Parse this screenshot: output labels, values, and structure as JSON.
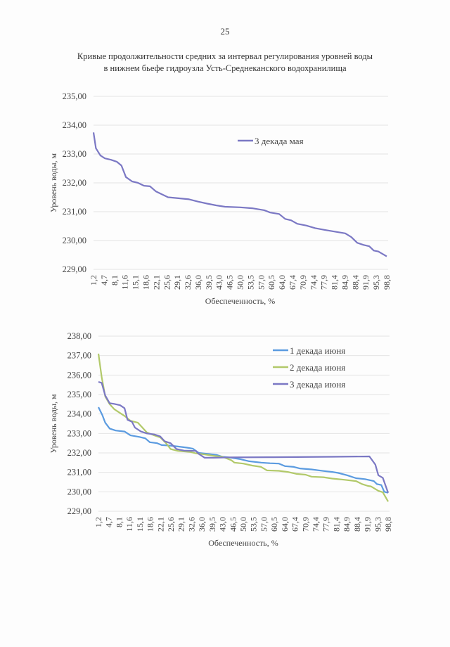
{
  "page_number": "25",
  "title_line1": "Кривые продолжительности средних за интервал регулирования уровней воды",
  "title_line2": "в нижнем бьефе гидроузла Усть-Среднеканского водохранилища",
  "chart_data": [
    {
      "type": "line",
      "title": "",
      "xlabel": "Обеспеченность, %",
      "ylabel": "Уровень воды, м",
      "xlim": [
        1.2,
        98.8
      ],
      "ylim": [
        229,
        235
      ],
      "yticks": [
        "229,00",
        "230,00",
        "231,00",
        "232,00",
        "233,00",
        "234,00",
        "235,00"
      ],
      "xticks": [
        "1,2",
        "4,7",
        "8,1",
        "11,6",
        "15,1",
        "18,6",
        "22,1",
        "25,6",
        "29,1",
        "32,6",
        "36,0",
        "39,5",
        "43,0",
        "46,5",
        "50,0",
        "53,5",
        "57,0",
        "60,5",
        "64,0",
        "67,4",
        "70,9",
        "74,4",
        "77,9",
        "81,4",
        "84,9",
        "88,4",
        "91,9",
        "95,3",
        "98,8"
      ],
      "grid": true,
      "legend_position": "top-right",
      "series": [
        {
          "name": "3 декада мая",
          "color": "#7b78c4",
          "points": [
            [
              1.2,
              233.75
            ],
            [
              2,
              233.2
            ],
            [
              3.5,
              232.95
            ],
            [
              5,
              232.85
            ],
            [
              7,
              232.8
            ],
            [
              9,
              232.73
            ],
            [
              10.5,
              232.6
            ],
            [
              12,
              232.2
            ],
            [
              14,
              232.05
            ],
            [
              16,
              232.0
            ],
            [
              18,
              231.9
            ],
            [
              20,
              231.88
            ],
            [
              22,
              231.7
            ],
            [
              24,
              231.6
            ],
            [
              26,
              231.5
            ],
            [
              30,
              231.46
            ],
            [
              33,
              231.43
            ],
            [
              36,
              231.35
            ],
            [
              39,
              231.28
            ],
            [
              42,
              231.22
            ],
            [
              45,
              231.17
            ],
            [
              50,
              231.15
            ],
            [
              54,
              231.12
            ],
            [
              58,
              231.05
            ],
            [
              60,
              230.97
            ],
            [
              63,
              230.92
            ],
            [
              65,
              230.75
            ],
            [
              67,
              230.7
            ],
            [
              69,
              230.58
            ],
            [
              72,
              230.52
            ],
            [
              75,
              230.43
            ],
            [
              78,
              230.37
            ],
            [
              82,
              230.3
            ],
            [
              85,
              230.25
            ],
            [
              87,
              230.12
            ],
            [
              89,
              229.92
            ],
            [
              91,
              229.85
            ],
            [
              93,
              229.8
            ],
            [
              94.5,
              229.65
            ],
            [
              96,
              229.62
            ],
            [
              98.8,
              229.45
            ]
          ]
        }
      ]
    },
    {
      "type": "line",
      "title": "",
      "xlabel": "Обеспеченность, %",
      "ylabel": "Уровень воды, м",
      "xlim": [
        1.2,
        98.8
      ],
      "ylim": [
        229,
        238
      ],
      "yticks": [
        "229,00",
        "230,00",
        "231,00",
        "232,00",
        "233,00",
        "234,00",
        "235,00",
        "236,00",
        "237,00",
        "238,00"
      ],
      "xticks": [
        "1,2",
        "4,7",
        "8,1",
        "11,6",
        "15,1",
        "18,6",
        "22,1",
        "25,6",
        "29,1",
        "32,6",
        "36,0",
        "39,5",
        "43,0",
        "46,5",
        "50,0",
        "53,5",
        "57,0",
        "60,5",
        "64,0",
        "67,4",
        "70,9",
        "74,4",
        "77,9",
        "81,4",
        "84,9",
        "88,4",
        "91,9",
        "95,3",
        "98,8"
      ],
      "grid": true,
      "legend_position": "top-right",
      "series": [
        {
          "name": "1 декада июня",
          "color": "#5b9be0",
          "points": [
            [
              1.2,
              234.35
            ],
            [
              2.5,
              233.95
            ],
            [
              3.5,
              233.55
            ],
            [
              5,
              233.25
            ],
            [
              7,
              233.15
            ],
            [
              10,
              233.1
            ],
            [
              12,
              232.9
            ],
            [
              15,
              232.82
            ],
            [
              17,
              232.75
            ],
            [
              18.5,
              232.55
            ],
            [
              21,
              232.5
            ],
            [
              22.5,
              232.4
            ],
            [
              25,
              232.38
            ],
            [
              28,
              232.33
            ],
            [
              31,
              232.27
            ],
            [
              33,
              232.22
            ],
            [
              35,
              232.0
            ],
            [
              38,
              231.95
            ],
            [
              41,
              231.9
            ],
            [
              43,
              231.8
            ],
            [
              46,
              231.75
            ],
            [
              49,
              231.68
            ],
            [
              52,
              231.57
            ],
            [
              56,
              231.5
            ],
            [
              59,
              231.47
            ],
            [
              62,
              231.45
            ],
            [
              64,
              231.32
            ],
            [
              67,
              231.28
            ],
            [
              69,
              231.2
            ],
            [
              73,
              231.15
            ],
            [
              77,
              231.07
            ],
            [
              80,
              231.02
            ],
            [
              82,
              230.97
            ],
            [
              85,
              230.85
            ],
            [
              88,
              230.7
            ],
            [
              91,
              230.65
            ],
            [
              94,
              230.55
            ],
            [
              95,
              230.4
            ],
            [
              96.5,
              230.35
            ],
            [
              97.5,
              230.0
            ],
            [
              98.8,
              229.95
            ]
          ]
        },
        {
          "name": "2 декада июня",
          "color": "#b2c96a",
          "points": [
            [
              1.2,
              237.1
            ],
            [
              2.3,
              235.9
            ],
            [
              3.5,
              234.9
            ],
            [
              5,
              234.5
            ],
            [
              6.5,
              234.25
            ],
            [
              8,
              234.1
            ],
            [
              10,
              233.9
            ],
            [
              12,
              233.65
            ],
            [
              14.5,
              233.55
            ],
            [
              16,
              233.3
            ],
            [
              17.5,
              233.05
            ],
            [
              20,
              232.9
            ],
            [
              22,
              232.8
            ],
            [
              24,
              232.5
            ],
            [
              25.5,
              232.2
            ],
            [
              28,
              232.1
            ],
            [
              32,
              232.05
            ],
            [
              34,
              231.98
            ],
            [
              37,
              231.92
            ],
            [
              40,
              231.85
            ],
            [
              43,
              231.8
            ],
            [
              46,
              231.62
            ],
            [
              47,
              231.5
            ],
            [
              50,
              231.45
            ],
            [
              53,
              231.35
            ],
            [
              56,
              231.28
            ],
            [
              58,
              231.1
            ],
            [
              62,
              231.08
            ],
            [
              65,
              231.02
            ],
            [
              68,
              230.92
            ],
            [
              71,
              230.88
            ],
            [
              73,
              230.78
            ],
            [
              77,
              230.75
            ],
            [
              80,
              230.68
            ],
            [
              84,
              230.62
            ],
            [
              88,
              230.55
            ],
            [
              90,
              230.4
            ],
            [
              92,
              230.3
            ],
            [
              93,
              230.28
            ],
            [
              95.5,
              230.05
            ],
            [
              97,
              229.98
            ],
            [
              98.8,
              229.5
            ]
          ]
        },
        {
          "name": "3 декада июня",
          "color": "#7b78c4",
          "points": [
            [
              1.2,
              235.65
            ],
            [
              2.3,
              235.6
            ],
            [
              3.5,
              234.95
            ],
            [
              5,
              234.55
            ],
            [
              6.5,
              234.52
            ],
            [
              8.5,
              234.45
            ],
            [
              10,
              234.3
            ],
            [
              11,
              233.7
            ],
            [
              12.5,
              233.6
            ],
            [
              13.5,
              233.3
            ],
            [
              15.5,
              233.1
            ],
            [
              17.5,
              233.0
            ],
            [
              20,
              232.95
            ],
            [
              22,
              232.85
            ],
            [
              23.5,
              232.6
            ],
            [
              25.5,
              232.5
            ],
            [
              27.5,
              232.2
            ],
            [
              30,
              232.12
            ],
            [
              34,
              232.1
            ],
            [
              35,
              231.95
            ],
            [
              37,
              231.75
            ],
            [
              40,
              231.75
            ],
            [
              45,
              231.77
            ],
            [
              60,
              231.78
            ],
            [
              80,
              231.8
            ],
            [
              92.5,
              231.82
            ],
            [
              94.5,
              231.4
            ],
            [
              95.5,
              230.85
            ],
            [
              97,
              230.72
            ],
            [
              98.8,
              229.95
            ]
          ]
        }
      ]
    }
  ]
}
